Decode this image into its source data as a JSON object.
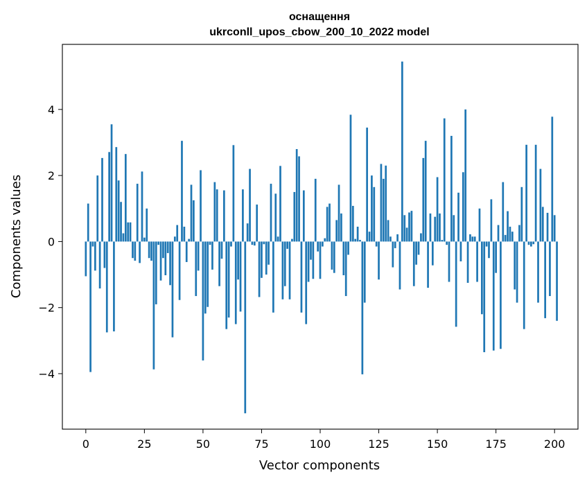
{
  "chart_data": {
    "type": "bar",
    "title": "оснащення",
    "subtitle": "ukrconll_upos_cbow_200_10_2022 model",
    "xlabel": "Vector components",
    "ylabel": "Components values",
    "x_ticks": [
      "0",
      "25",
      "50",
      "75",
      "100",
      "125",
      "150",
      "175",
      "200"
    ],
    "y_ticks": [
      "−4",
      "−2",
      "0",
      "2",
      "4"
    ],
    "xlim": [
      -10,
      210
    ],
    "ylim": [
      -5.68,
      5.97
    ],
    "bar_color": "#1f77b4",
    "grid": false,
    "values": [
      -1.05,
      1.15,
      -3.95,
      -0.15,
      -0.88,
      2.0,
      -1.42,
      2.53,
      -0.8,
      -2.75,
      2.71,
      3.55,
      -2.72,
      2.86,
      1.85,
      1.2,
      0.25,
      2.65,
      0.58,
      0.58,
      -0.5,
      -0.58,
      1.75,
      -0.65,
      2.12,
      0.12,
      1.0,
      -0.5,
      -0.58,
      -3.87,
      -1.9,
      -0.1,
      -1.18,
      -0.5,
      -1.02,
      -0.35,
      -1.32,
      -2.9,
      0.15,
      0.5,
      -1.77,
      3.05,
      0.45,
      -0.62,
      0.08,
      1.72,
      1.25,
      -1.65,
      -0.88,
      2.16,
      -3.6,
      -2.18,
      -1.98,
      -0.1,
      -0.85,
      1.8,
      1.58,
      -1.35,
      -0.52,
      1.55,
      -2.65,
      -2.3,
      -0.15,
      2.92,
      -2.5,
      -1.15,
      -2.12,
      1.58,
      -5.2,
      0.55,
      2.2,
      -0.1,
      -0.12,
      1.12,
      -1.68,
      -1.1,
      -0.08,
      -1.0,
      -0.7,
      1.75,
      -2.15,
      1.45,
      0.15,
      2.29,
      -1.75,
      -1.35,
      -0.22,
      -1.75,
      0.08,
      1.5,
      2.8,
      2.58,
      -2.15,
      1.55,
      -2.5,
      -1.22,
      -0.55,
      -1.13,
      1.9,
      -0.3,
      -1.13,
      -0.15,
      0.1,
      1.05,
      1.15,
      -0.85,
      -0.95,
      0.65,
      1.72,
      0.85,
      -1.02,
      -1.65,
      -0.4,
      3.84,
      1.08,
      0.08,
      0.45,
      0.05,
      -4.02,
      -1.85,
      3.45,
      0.3,
      2.0,
      1.65,
      -0.15,
      -1.15,
      2.35,
      1.9,
      2.3,
      0.65,
      0.15,
      -0.78,
      -0.2,
      0.22,
      -1.45,
      5.45,
      0.8,
      0.42,
      0.88,
      0.93,
      -1.35,
      -0.7,
      -0.4,
      0.25,
      2.53,
      3.05,
      -1.4,
      0.85,
      -0.72,
      0.75,
      1.95,
      0.85,
      0.05,
      3.73,
      -0.1,
      -1.22,
      3.2,
      0.8,
      -2.58,
      1.48,
      -0.6,
      2.1,
      4.0,
      -1.25,
      0.22,
      0.15,
      0.15,
      -1.22,
      1.0,
      -2.2,
      -3.35,
      -0.15,
      -0.5,
      1.28,
      -3.3,
      -0.95,
      0.5,
      -3.25,
      1.8,
      0.2,
      0.92,
      0.45,
      0.3,
      -1.45,
      -1.85,
      0.5,
      1.65,
      -2.65,
      2.93,
      -0.1,
      -0.15,
      -0.08,
      2.93,
      -1.85,
      2.2,
      1.05,
      -2.32,
      0.87,
      -1.65,
      3.78,
      0.8,
      -2.4
    ]
  }
}
